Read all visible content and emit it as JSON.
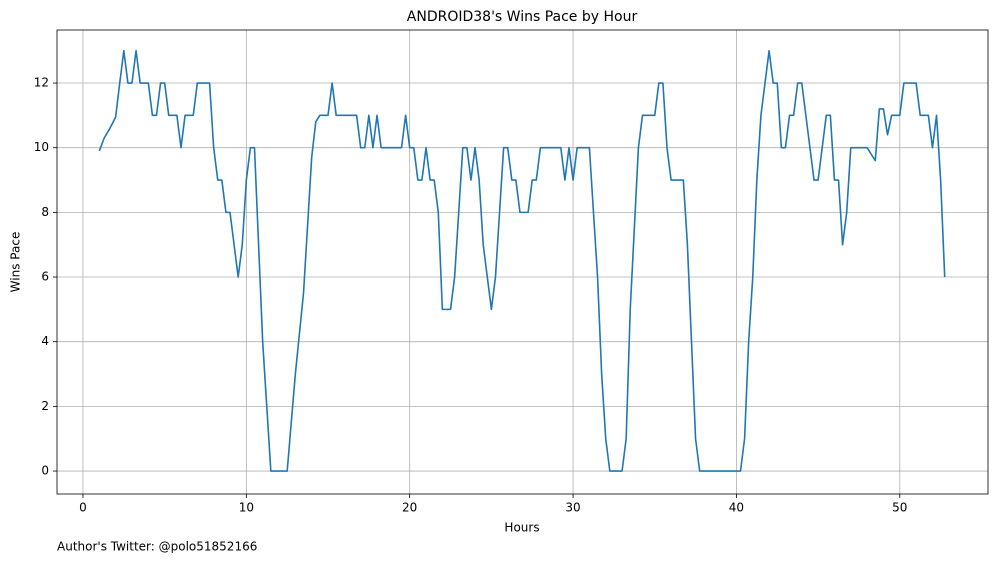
{
  "chart_data": {
    "type": "line",
    "title": "ANDROID38's Wins Pace by Hour",
    "x_label": "Hours",
    "y_label": "Wins Pace",
    "annotation": "Author's Twitter: @polo51852166",
    "x": [
      1,
      1.3,
      1.65,
      2,
      2.25,
      2.5,
      2.75,
      3,
      3.25,
      3.5,
      4,
      4.25,
      4.5,
      4.75,
      5,
      5.25,
      5.75,
      6,
      6.25,
      6.75,
      7,
      7.75,
      8,
      8.25,
      8.5,
      8.75,
      9,
      9.25,
      9.5,
      9.75,
      10,
      10.25,
      10.5,
      10.75,
      11,
      11.25,
      11.5,
      12.5,
      12.75,
      13,
      13.5,
      14,
      14.25,
      14.5,
      15,
      15.25,
      15.5,
      16.75,
      17,
      17.25,
      17.5,
      17.75,
      18,
      18.25,
      19.5,
      19.75,
      20,
      20.25,
      20.5,
      20.75,
      21,
      21.25,
      21.5,
      21.75,
      22,
      22.5,
      22.75,
      23,
      23.25,
      23.5,
      23.75,
      24,
      24.25,
      24.5,
      24.75,
      25,
      25.25,
      25.5,
      25.75,
      26,
      26.25,
      26.5,
      26.75,
      27.25,
      27.5,
      27.75,
      28,
      29.25,
      29.5,
      29.75,
      30,
      30.25,
      31,
      31.25,
      31.5,
      31.75,
      32,
      32.25,
      33,
      33.25,
      33.5,
      34,
      34.25,
      35,
      35.25,
      35.5,
      35.75,
      36,
      36.75,
      37,
      37.25,
      37.5,
      37.75,
      40.25,
      40.5,
      40.75,
      41,
      41.25,
      41.5,
      41.75,
      42,
      42.25,
      42.5,
      42.75,
      43,
      43.25,
      43.5,
      43.75,
      44,
      44.75,
      45,
      45.25,
      45.5,
      45.75,
      46,
      46.25,
      46.5,
      46.75,
      47,
      48,
      48.5,
      48.75,
      49,
      49.25,
      49.5,
      50,
      50.25,
      51,
      51.25,
      51.75,
      52,
      52.25,
      52.5,
      52.75
    ],
    "series": [
      {
        "name": "Wins Pace",
        "color": "#1f77b4",
        "values": [
          9.9,
          10.3,
          10.6,
          10.95,
          12,
          13,
          12,
          12,
          13,
          12,
          12,
          11,
          11,
          12,
          12,
          11,
          11,
          10,
          11,
          11,
          12,
          12,
          10,
          9,
          9,
          8,
          8,
          7,
          6,
          7,
          9,
          10,
          10,
          7,
          4,
          2,
          0,
          0,
          1.5,
          3,
          5.5,
          9.7,
          10.8,
          11,
          11,
          12,
          11,
          11,
          10,
          10,
          11,
          10,
          11,
          10,
          10,
          11,
          10,
          10,
          9,
          9,
          10,
          9,
          9,
          8,
          5,
          5,
          6,
          8,
          10,
          10,
          9,
          10,
          9,
          7,
          6,
          5,
          6,
          8,
          10,
          10,
          9,
          9,
          8,
          8,
          9,
          9,
          10,
          10,
          9,
          10,
          9,
          10,
          10,
          8,
          6,
          3,
          1,
          0,
          0,
          1,
          5,
          10,
          11,
          11,
          12,
          12,
          10,
          9,
          9,
          7,
          4,
          1,
          0,
          0,
          1,
          4,
          6,
          9,
          11,
          12,
          13,
          12,
          12,
          10,
          10,
          11,
          11,
          12,
          12,
          9,
          9,
          10,
          11,
          11,
          9,
          9,
          7,
          8,
          10,
          10,
          9.6,
          11.2,
          11.2,
          10.4,
          11,
          11,
          12,
          12,
          11,
          11,
          10,
          11,
          9,
          6
        ]
      }
    ],
    "xlim": [
      -1.59,
      55.4
    ],
    "ylim": [
      -0.71,
      13.64
    ],
    "xticks": [
      0,
      10,
      20,
      30,
      40,
      50
    ],
    "yticks": [
      0,
      2,
      4,
      6,
      8,
      10,
      12
    ],
    "grid": true
  }
}
